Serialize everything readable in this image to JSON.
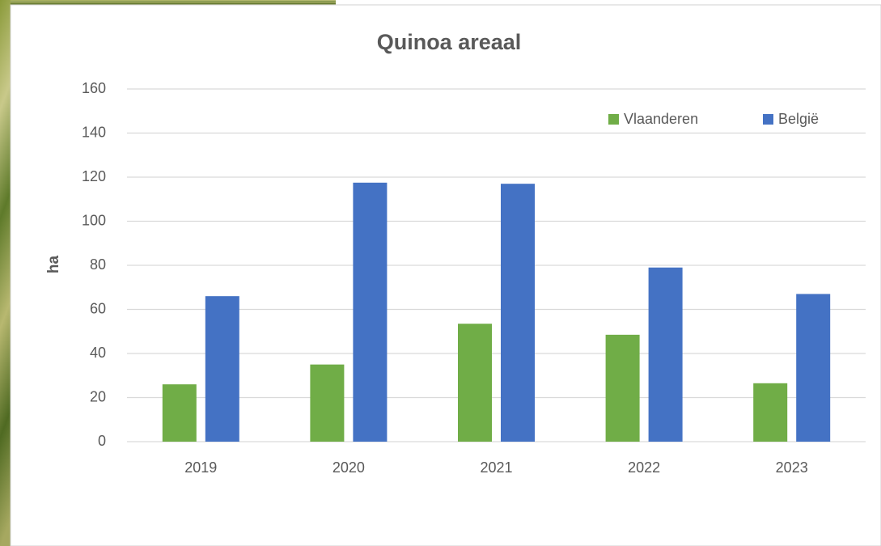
{
  "chart_data": {
    "type": "bar",
    "title": "Quinoa areaal",
    "y_label": "ha",
    "categories": [
      "2019",
      "2020",
      "2021",
      "2022",
      "2023"
    ],
    "series": [
      {
        "name": "Vlaanderen",
        "color": "#70ad47",
        "values": [
          26,
          35,
          53.5,
          48.5,
          26.5
        ]
      },
      {
        "name": "België",
        "color": "#4472c4",
        "values": [
          66,
          117.5,
          117,
          79,
          67
        ]
      }
    ],
    "ylim": [
      0,
      160
    ],
    "yticks": [
      0,
      20,
      40,
      60,
      80,
      100,
      120,
      140,
      160
    ],
    "grid": true,
    "legend": "top-right"
  }
}
